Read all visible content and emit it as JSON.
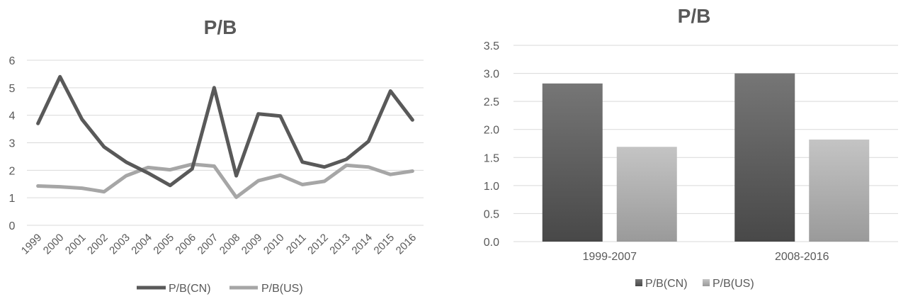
{
  "chart_data": [
    {
      "type": "line",
      "title": "P/B",
      "x": [
        "1999",
        "2000",
        "2001",
        "2002",
        "2003",
        "2004",
        "2005",
        "2006",
        "2007",
        "2008",
        "2009",
        "2010",
        "2011",
        "2012",
        "2013",
        "2014",
        "2015",
        "2016"
      ],
      "ylim": [
        0,
        6
      ],
      "yticks": [
        "0",
        "1",
        "2",
        "3",
        "4",
        "5",
        "6"
      ],
      "grid": true,
      "legend": "bottom",
      "series": [
        {
          "name": "P/B(CN)",
          "color": "#595959",
          "values": [
            3.7,
            5.4,
            3.85,
            2.85,
            2.3,
            1.9,
            1.45,
            2.05,
            5.0,
            1.8,
            4.05,
            3.97,
            2.3,
            2.12,
            2.4,
            3.05,
            4.88,
            3.83
          ]
        },
        {
          "name": "P/B(US)",
          "color": "#a6a6a6",
          "values": [
            1.43,
            1.4,
            1.35,
            1.22,
            1.8,
            2.1,
            2.02,
            2.22,
            2.15,
            1.02,
            1.62,
            1.82,
            1.48,
            1.6,
            2.18,
            2.12,
            1.85,
            1.97
          ]
        }
      ]
    },
    {
      "type": "bar",
      "title": "P/B",
      "categories": [
        "1999-2007",
        "2008-2016"
      ],
      "ylim": [
        0,
        3.5
      ],
      "yticks": [
        "0.0",
        "0.5",
        "1.0",
        "1.5",
        "2.0",
        "2.5",
        "3.0",
        "3.5"
      ],
      "grid": true,
      "legend": "bottom",
      "series": [
        {
          "name": "P/B(CN)",
          "color": "#595959",
          "values": [
            2.82,
            3.0
          ]
        },
        {
          "name": "P/B(US)",
          "color": "#a6a6a6",
          "values": [
            1.69,
            1.82
          ]
        }
      ]
    }
  ]
}
